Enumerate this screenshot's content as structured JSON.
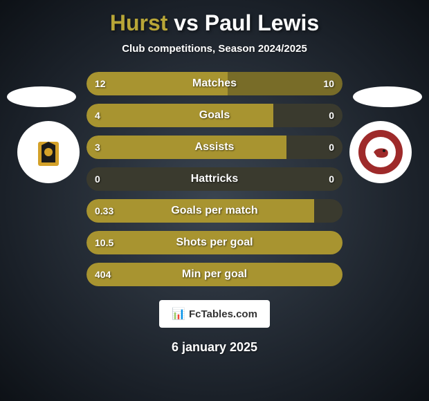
{
  "title": {
    "player1": "Hurst",
    "vs": "vs",
    "player2": "Paul Lewis"
  },
  "subtitle": "Club competitions, Season 2024/2025",
  "colors": {
    "player1_bar": "#a89430",
    "player2_bar": "#786c28",
    "bar_bg": "#3a3a2e",
    "logo_left_primary": "#d4a129",
    "logo_left_secondary": "#1a1a1a",
    "logo_right_primary": "#9e2a2a",
    "logo_right_secondary": "#ffffff"
  },
  "stats": [
    {
      "label": "Matches",
      "left_value": "12",
      "right_value": "10",
      "left_width": 55,
      "right_width": 45
    },
    {
      "label": "Goals",
      "left_value": "4",
      "right_value": "0",
      "left_width": 73,
      "right_width": 0
    },
    {
      "label": "Assists",
      "left_value": "3",
      "right_value": "0",
      "left_width": 78,
      "right_width": 0
    },
    {
      "label": "Hattricks",
      "left_value": "0",
      "right_value": "0",
      "left_width": 0,
      "right_width": 0
    },
    {
      "label": "Goals per match",
      "left_value": "0.33",
      "right_value": "",
      "left_width": 89,
      "right_width": 0
    },
    {
      "label": "Shots per goal",
      "left_value": "10.5",
      "right_value": "",
      "left_width": 100,
      "right_width": 0
    },
    {
      "label": "Min per goal",
      "left_value": "404",
      "right_value": "",
      "left_width": 100,
      "right_width": 0
    }
  ],
  "footer": {
    "brand": "FcTables.com",
    "icon": "📊"
  },
  "date": "6 january 2025"
}
